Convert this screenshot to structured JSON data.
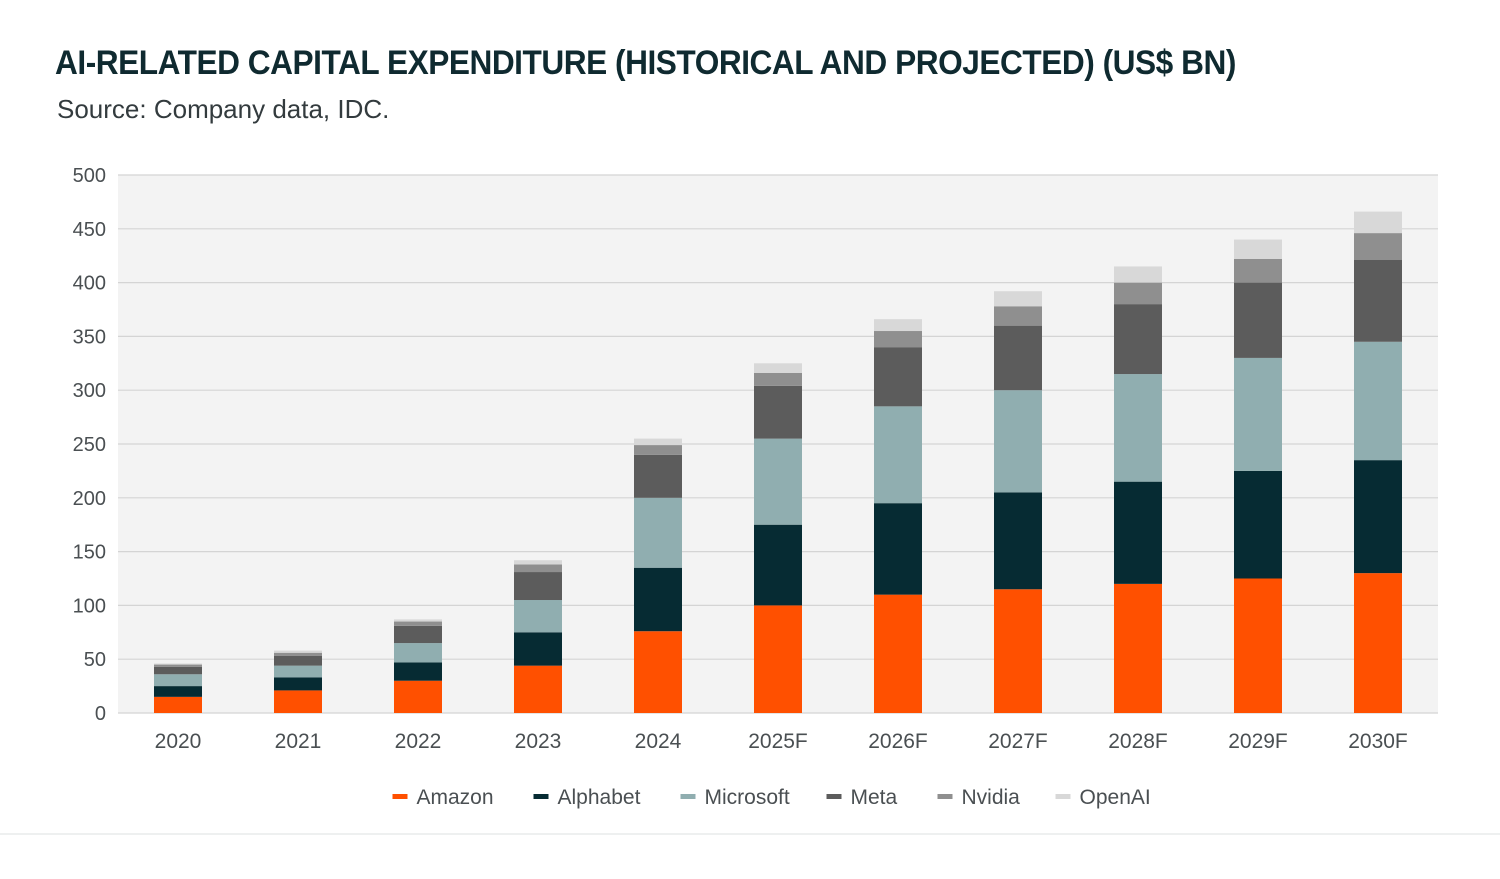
{
  "header": {
    "title": "AI-RELATED CAPITAL EXPENDITURE (HISTORICAL AND PROJECTED) (US$ BN)",
    "subtitle": "Source: Company data, IDC."
  },
  "colors": {
    "plot_background": "#f3f3f3",
    "gridline": "#d4d4d4",
    "axis_text": "#4a4f52"
  },
  "chart_data": {
    "type": "bar",
    "stacked": true,
    "title": "AI-RELATED CAPITAL EXPENDITURE (HISTORICAL AND PROJECTED) (US$ BN)",
    "xlabel": "",
    "ylabel": "",
    "ylim": [
      0,
      500
    ],
    "yticks": [
      0,
      50,
      100,
      150,
      200,
      250,
      300,
      350,
      400,
      450,
      500
    ],
    "grid": true,
    "legend_position": "bottom-center",
    "categories": [
      "2020",
      "2021",
      "2022",
      "2023",
      "2024",
      "2025F",
      "2026F",
      "2027F",
      "2028F",
      "2029F",
      "2030F"
    ],
    "series": [
      {
        "name": "Amazon",
        "color": "#ff5000",
        "values": [
          15,
          21,
          30,
          44,
          76,
          100,
          110,
          115,
          120,
          125,
          130
        ]
      },
      {
        "name": "Alphabet",
        "color": "#062b33",
        "values": [
          10,
          12,
          17,
          31,
          59,
          75,
          85,
          90,
          95,
          100,
          105
        ]
      },
      {
        "name": "Microsoft",
        "color": "#90aeb0",
        "values": [
          11,
          11,
          18,
          30,
          65,
          80,
          90,
          95,
          100,
          105,
          110
        ]
      },
      {
        "name": "Meta",
        "color": "#5c5c5c",
        "values": [
          7,
          9,
          16,
          26,
          40,
          49,
          55,
          60,
          65,
          70,
          76
        ]
      },
      {
        "name": "Nvidia",
        "color": "#8f8f8f",
        "values": [
          2,
          3,
          4,
          7,
          9,
          12,
          15,
          18,
          20,
          22,
          25
        ]
      },
      {
        "name": "OpenAI",
        "color": "#d8d8d8",
        "values": [
          1,
          2,
          2,
          4,
          6,
          9,
          11,
          14,
          15,
          18,
          20
        ]
      }
    ]
  }
}
